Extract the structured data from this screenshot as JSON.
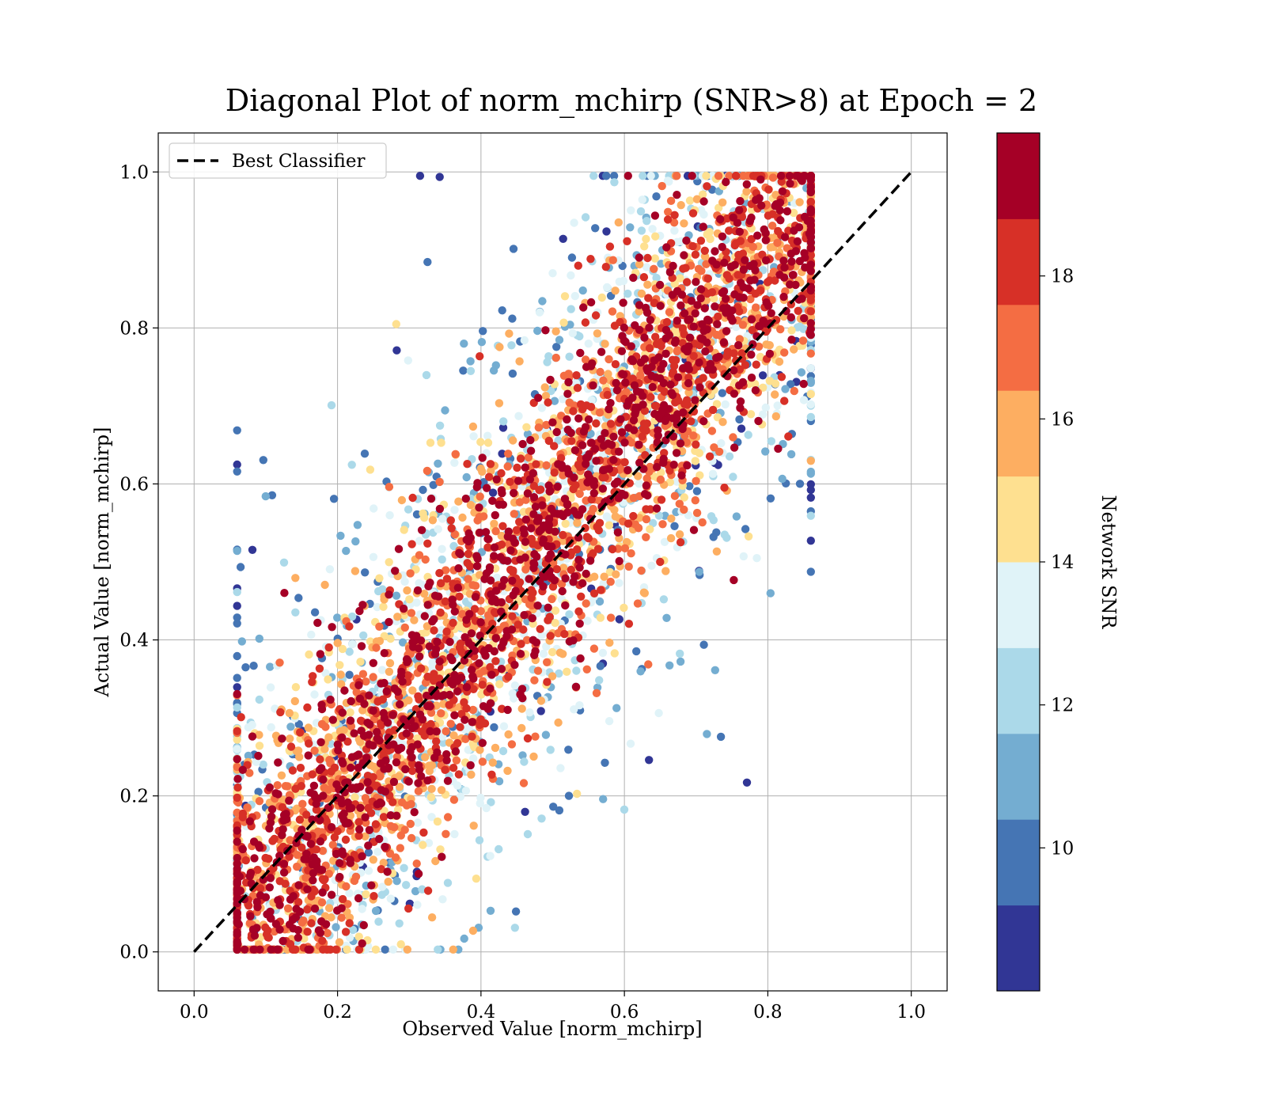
{
  "chart_data": {
    "type": "scatter",
    "title": "Diagonal Plot of norm_mchirp (SNR>8) at Epoch = 2",
    "xlabel": "Observed Value [norm_mchirp]",
    "ylabel": "Actual Value [norm_mchirp]",
    "xlim": [
      -0.05,
      1.05
    ],
    "ylim": [
      -0.05,
      1.05
    ],
    "x_ticks": [
      "0.0",
      "0.2",
      "0.4",
      "0.6",
      "0.8",
      "1.0"
    ],
    "y_ticks": [
      "0.0",
      "0.2",
      "0.4",
      "0.6",
      "0.8",
      "1.0"
    ],
    "grid": true,
    "legend": {
      "position": "upper-left",
      "entries": [
        {
          "label": "Best Classifier",
          "style": "dashed",
          "color": "#000000"
        }
      ]
    },
    "diagonal_line": {
      "x": [
        0.0,
        1.0
      ],
      "y": [
        0.0,
        1.0
      ],
      "label": "Best Classifier"
    },
    "colorbar": {
      "label": "Network SNR",
      "range": [
        8,
        20
      ],
      "tick_labels": [
        "10",
        "12",
        "14",
        "16",
        "18"
      ],
      "tick_values": [
        10,
        12,
        14,
        16,
        18
      ],
      "colors": [
        "#313695",
        "#4575b4",
        "#74add1",
        "#abd9e9",
        "#e0f3f8",
        "#fee090",
        "#fdae61",
        "#f46d43",
        "#d73027",
        "#a50026"
      ]
    },
    "point_distribution": {
      "description": "Dense cloud of points scattered along the y = x diagonal; high-SNR (dark red) points concentrate near the diagonal, low-SNR (blue) points spread farther away.",
      "x_range": [
        0.06,
        0.86
      ],
      "y_range": [
        0.0,
        1.0
      ],
      "band_center": [
        [
          0.08,
          0.06
        ],
        [
          0.2,
          0.19
        ],
        [
          0.4,
          0.4
        ],
        [
          0.6,
          0.6
        ],
        [
          0.8,
          0.78
        ]
      ]
    }
  }
}
